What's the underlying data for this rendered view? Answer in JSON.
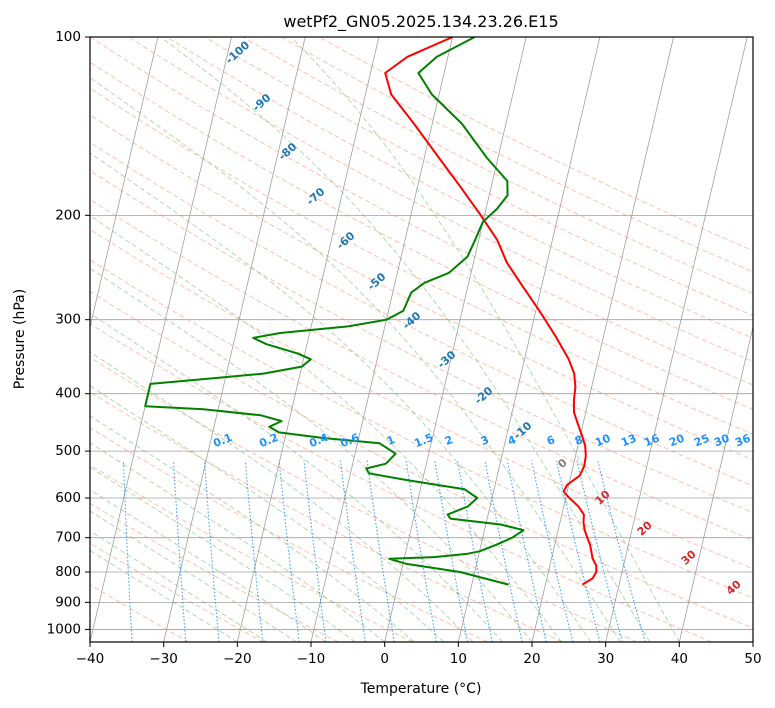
{
  "chart_data": {
    "type": "skew-t",
    "title": "wetPf2_GN05.2025.134.23.26.E15",
    "xlabel": "Temperature (°C)",
    "ylabel": "Pressure (hPa)",
    "xlim": [
      -40,
      50
    ],
    "ylim": [
      1050,
      100
    ],
    "y_scale": "log",
    "grid": true,
    "x_ticks": [
      -40,
      -30,
      -20,
      -10,
      0,
      10,
      20,
      30,
      40,
      50
    ],
    "y_ticks": [
      100,
      200,
      300,
      400,
      500,
      600,
      700,
      800,
      900,
      1000
    ],
    "isotherm_labels": [
      "-100",
      "-90",
      "-80",
      "-70",
      "-60",
      "-50",
      "-40",
      "-30",
      "-20",
      "-10",
      "0",
      "10",
      "20",
      "30",
      "40"
    ],
    "mixing_ratio_labels": [
      "0.1",
      "0.2",
      "0.4",
      "0.6",
      "1",
      "1.5",
      "2",
      "3",
      "4",
      "6",
      "8",
      "10",
      "13",
      "16",
      "20",
      "25",
      "30",
      "36"
    ],
    "colors": {
      "temperature": "#ff0000",
      "dewpoint": "#008000",
      "isotherm": "#a0a0a0",
      "dry_adiabat": "#ff8c69",
      "moist_adiabat": "#7fbf7f",
      "mixing_ratio": "#1e90ff",
      "isotherm_label_cold": "#1f77b4",
      "isotherm_label_zero": "#808080",
      "isotherm_label_warm": "#d62728"
    },
    "series": [
      {
        "id": "temperature",
        "color": "#ff0000",
        "points": [
          {
            "p": 840,
            "t": 25.0
          },
          {
            "p": 820,
            "t": 26.2
          },
          {
            "p": 800,
            "t": 26.5
          },
          {
            "p": 780,
            "t": 26.3
          },
          {
            "p": 760,
            "t": 25.6
          },
          {
            "p": 740,
            "t": 25.2
          },
          {
            "p": 720,
            "t": 24.8
          },
          {
            "p": 700,
            "t": 24.2
          },
          {
            "p": 680,
            "t": 23.6
          },
          {
            "p": 660,
            "t": 23.2
          },
          {
            "p": 640,
            "t": 23.0
          },
          {
            "p": 620,
            "t": 22.0
          },
          {
            "p": 600,
            "t": 20.5
          },
          {
            "p": 585,
            "t": 19.5
          },
          {
            "p": 570,
            "t": 19.8
          },
          {
            "p": 550,
            "t": 21.2
          },
          {
            "p": 530,
            "t": 21.5
          },
          {
            "p": 510,
            "t": 21.4
          },
          {
            "p": 490,
            "t": 21.0
          },
          {
            "p": 470,
            "t": 20.2
          },
          {
            "p": 450,
            "t": 19.3
          },
          {
            "p": 430,
            "t": 18.4
          },
          {
            "p": 410,
            "t": 18.0
          },
          {
            "p": 390,
            "t": 17.8
          },
          {
            "p": 370,
            "t": 17.2
          },
          {
            "p": 350,
            "t": 16.0
          },
          {
            "p": 320,
            "t": 13.5
          },
          {
            "p": 290,
            "t": 10.5
          },
          {
            "p": 260,
            "t": 7.0
          },
          {
            "p": 240,
            "t": 4.5
          },
          {
            "p": 220,
            "t": 2.5
          },
          {
            "p": 200,
            "t": -0.5
          },
          {
            "p": 180,
            "t": -4.0
          },
          {
            "p": 160,
            "t": -8.0
          },
          {
            "p": 140,
            "t": -12.5
          },
          {
            "p": 125,
            "t": -16.5
          },
          {
            "p": 115,
            "t": -18.0
          },
          {
            "p": 108,
            "t": -15.5
          },
          {
            "p": 100,
            "t": -10.0
          }
        ]
      },
      {
        "id": "dewpoint",
        "color": "#008000",
        "points": [
          {
            "p": 840,
            "t": 15.0
          },
          {
            "p": 800,
            "t": 8.0
          },
          {
            "p": 775,
            "t": 0.5
          },
          {
            "p": 760,
            "t": -2.0
          },
          {
            "p": 755,
            "t": 4.0
          },
          {
            "p": 745,
            "t": 8.5
          },
          {
            "p": 738,
            "t": 10.0
          },
          {
            "p": 720,
            "t": 12.0
          },
          {
            "p": 700,
            "t": 14.0
          },
          {
            "p": 680,
            "t": 15.3
          },
          {
            "p": 665,
            "t": 12.0
          },
          {
            "p": 650,
            "t": 5.0
          },
          {
            "p": 640,
            "t": 4.5
          },
          {
            "p": 620,
            "t": 7.0
          },
          {
            "p": 600,
            "t": 8.0
          },
          {
            "p": 580,
            "t": 6.0
          },
          {
            "p": 560,
            "t": -2.0
          },
          {
            "p": 545,
            "t": -7.5
          },
          {
            "p": 535,
            "t": -8.0
          },
          {
            "p": 525,
            "t": -5.5
          },
          {
            "p": 505,
            "t": -4.5
          },
          {
            "p": 485,
            "t": -7.0
          },
          {
            "p": 475,
            "t": -15.0
          },
          {
            "p": 465,
            "t": -21.0
          },
          {
            "p": 455,
            "t": -22.5
          },
          {
            "p": 445,
            "t": -21.0
          },
          {
            "p": 435,
            "t": -24.0
          },
          {
            "p": 425,
            "t": -32.0
          },
          {
            "p": 420,
            "t": -40.0
          },
          {
            "p": 385,
            "t": -40.0
          },
          {
            "p": 375,
            "t": -30.0
          },
          {
            "p": 370,
            "t": -25.0
          },
          {
            "p": 360,
            "t": -20.0
          },
          {
            "p": 350,
            "t": -19.0
          },
          {
            "p": 342,
            "t": -21.0
          },
          {
            "p": 330,
            "t": -25.5
          },
          {
            "p": 322,
            "t": -27.5
          },
          {
            "p": 316,
            "t": -24.0
          },
          {
            "p": 308,
            "t": -15.0
          },
          {
            "p": 300,
            "t": -10.0
          },
          {
            "p": 290,
            "t": -8.0
          },
          {
            "p": 270,
            "t": -7.5
          },
          {
            "p": 260,
            "t": -6.0
          },
          {
            "p": 250,
            "t": -3.0
          },
          {
            "p": 235,
            "t": -1.0
          },
          {
            "p": 220,
            "t": -0.5
          },
          {
            "p": 205,
            "t": 0.0
          },
          {
            "p": 195,
            "t": 1.5
          },
          {
            "p": 185,
            "t": 2.5
          },
          {
            "p": 175,
            "t": 2.0
          },
          {
            "p": 160,
            "t": -1.5
          },
          {
            "p": 140,
            "t": -6.0
          },
          {
            "p": 125,
            "t": -11.0
          },
          {
            "p": 115,
            "t": -13.5
          },
          {
            "p": 108,
            "t": -11.5
          },
          {
            "p": 100,
            "t": -7.0
          }
        ]
      }
    ]
  }
}
